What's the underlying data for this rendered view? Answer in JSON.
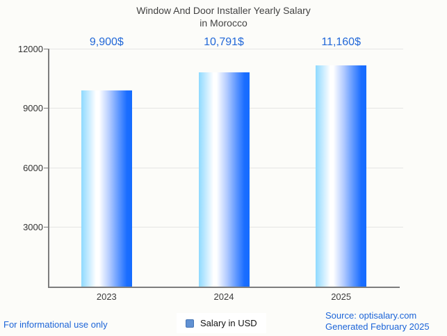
{
  "title": {
    "line1": "Window And Door Installer Yearly Salary",
    "line2": "in Morocco"
  },
  "chart_data": {
    "type": "bar",
    "title": "Window And Door Installer Yearly Salary in Morocco",
    "categories": [
      "2023",
      "2024",
      "2025"
    ],
    "series": [
      {
        "name": "Salary in USD",
        "values": [
          9900,
          10791,
          11160
        ],
        "value_labels": [
          "9,900$",
          "10,791$",
          "11,160$"
        ]
      }
    ],
    "xlabel": "",
    "ylabel": "",
    "ylim": [
      0,
      12000
    ],
    "yticks": [
      3000,
      6000,
      9000,
      12000
    ],
    "grid": true,
    "legend_position": "bottom"
  },
  "legend": {
    "label": "Salary in USD"
  },
  "footer": {
    "disclaimer": "For informational use only",
    "source": "Source: optisalary.com",
    "generated": "Generated February 2025"
  },
  "colors": {
    "background": "#fcfcf9",
    "title_text": "#424242",
    "axis_text": "#333333",
    "axis_line": "#7d7d7d",
    "gridline": "#e4e4e4",
    "value_label_blue": "#2268d8",
    "footer_blue": "#1b64d8",
    "legend_marker_fill": "#6191d3",
    "legend_marker_border": "#4474b4",
    "bar_gradient": [
      {
        "c": "#8edaff",
        "p": 0
      },
      {
        "c": "#c9ecff",
        "p": 15
      },
      {
        "c": "#ffffff",
        "p": 29
      },
      {
        "c": "#ffffff",
        "p": 35
      },
      {
        "c": "#b4ccff",
        "p": 55
      },
      {
        "c": "#5e97ff",
        "p": 74
      },
      {
        "c": "#1a6dff",
        "p": 90
      },
      {
        "c": "#156cff",
        "p": 100
      }
    ]
  }
}
